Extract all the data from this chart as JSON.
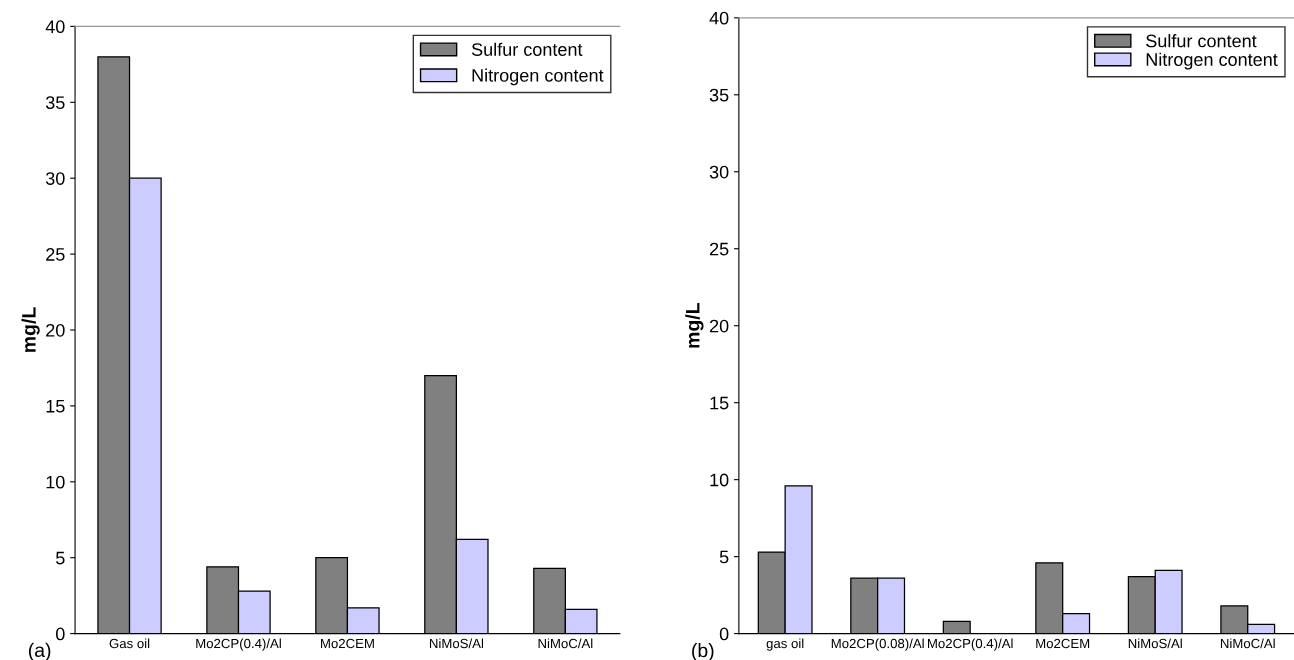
{
  "chart_data": [
    {
      "type": "bar",
      "categories": [
        "Gas oil",
        "Mo2CP(0.4)/Al",
        "Mo2CEM",
        "NiMoS/Al",
        "NiMoC/Al"
      ],
      "series": [
        {
          "name": "Sulfur content",
          "color": "#808080",
          "values": [
            38,
            4.4,
            5.0,
            17,
            4.3
          ]
        },
        {
          "name": "Nitrogen content",
          "color": "#ccccff",
          "values": [
            30,
            2.8,
            1.7,
            6.2,
            1.6
          ]
        }
      ],
      "ylabel": "mg/L",
      "ylim": [
        0,
        40
      ],
      "yticks": [
        0,
        5,
        10,
        15,
        20,
        25,
        30,
        35,
        40
      ],
      "grid": false,
      "legend": "top right",
      "annotations": [
        "(a)"
      ]
    },
    {
      "type": "bar",
      "categories": [
        "gas oil",
        "Mo2CP(0.08)/Al",
        "Mo2CP(0.4)/Al",
        "Mo2CEM",
        "NiMoS/Al",
        "NiMoC/Al"
      ],
      "series": [
        {
          "name": "Sulfur content",
          "color": "#808080",
          "values": [
            5.3,
            3.6,
            0.8,
            4.6,
            3.7,
            1.8
          ]
        },
        {
          "name": "Nitrogen content",
          "color": "#ccccff",
          "values": [
            9.6,
            3.6,
            null,
            1.3,
            4.1,
            0.6
          ]
        }
      ],
      "ylabel": "mg/L",
      "ylim": [
        0,
        40
      ],
      "yticks": [
        0,
        5,
        10,
        15,
        20,
        25,
        30,
        35,
        40
      ],
      "grid": false,
      "legend": "top right",
      "annotations": [
        "(b)"
      ]
    }
  ]
}
